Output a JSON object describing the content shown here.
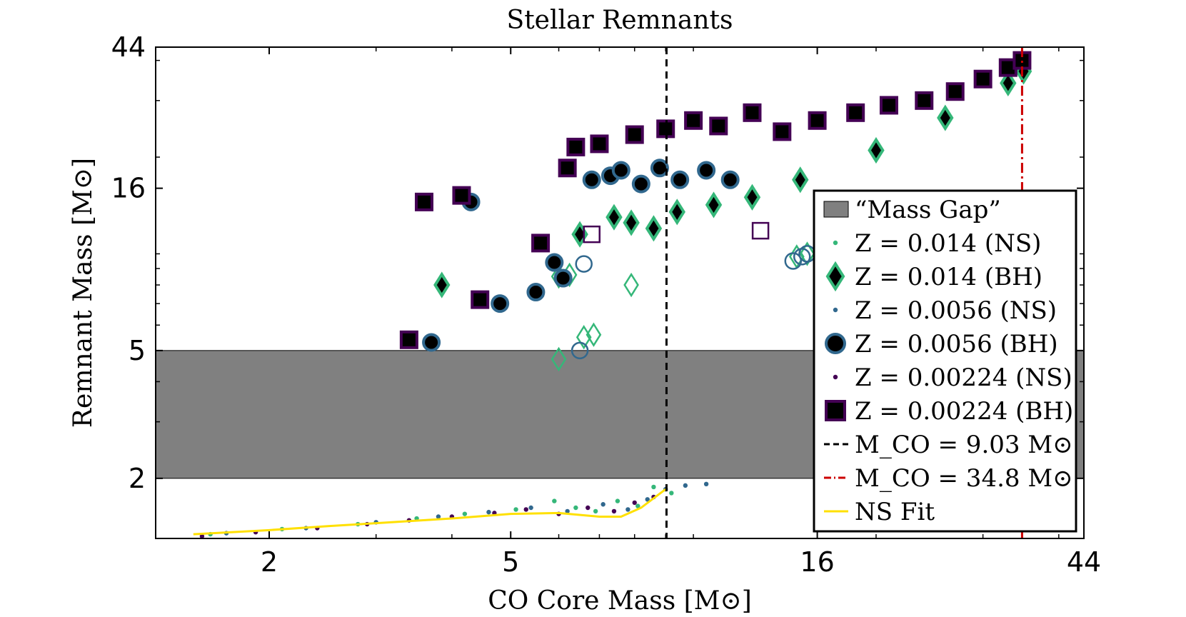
{
  "chart_data": {
    "type": "scatter",
    "title": "Stellar Remnants",
    "xlabel": "CO Core Mass [M⊙]",
    "ylabel": "Remnant Mass [M⊙]",
    "xscale": "log",
    "yscale": "log",
    "xlim": [
      1.3,
      44
    ],
    "ylim": [
      1.3,
      44
    ],
    "xticks": [
      2,
      5,
      16,
      44
    ],
    "xtick_labels": [
      "2",
      "5",
      "16",
      "44"
    ],
    "yticks": [
      2,
      5,
      16,
      44
    ],
    "ytick_labels": [
      "2",
      "5",
      "16",
      "44"
    ],
    "mass_gap": {
      "label": "“Mass Gap”",
      "ymin": 2,
      "ymax": 5,
      "color": "#808080"
    },
    "vlines": [
      {
        "x": 9.03,
        "label": "M_CO = 9.03 M⊙",
        "color": "#000000",
        "style": "dashed"
      },
      {
        "x": 34.8,
        "label": "M_CO = 34.8 M⊙",
        "color": "#cc0000",
        "style": "dashdot"
      }
    ],
    "legend": {
      "location": "lower-right",
      "entries": [
        {
          "key": "gap",
          "label": "“Mass Gap”"
        },
        {
          "key": "ns014",
          "label": "Z = 0.014 (NS)"
        },
        {
          "key": "bh014",
          "label": "Z = 0.014 (BH)"
        },
        {
          "key": "ns0056",
          "label": "Z = 0.0056 (NS)"
        },
        {
          "key": "bh0056",
          "label": "Z = 0.0056 (BH)"
        },
        {
          "key": "ns00224",
          "label": "Z = 0.00224 (NS)"
        },
        {
          "key": "bh00224",
          "label": "Z = 0.00224 (BH)"
        },
        {
          "key": "line903",
          "label": "M_CO = 9.03 M⊙"
        },
        {
          "key": "line348",
          "label": "M_CO = 34.8 M⊙"
        },
        {
          "key": "nsfit",
          "label": "NS Fit"
        }
      ]
    },
    "ns_fit": {
      "name": "NS Fit",
      "color": "#ffe000",
      "x": [
        1.5,
        2.0,
        2.5,
        3.0,
        4.0,
        5.0,
        6.0,
        7.0,
        7.6,
        8.2,
        9.0
      ],
      "y": [
        1.34,
        1.38,
        1.42,
        1.45,
        1.5,
        1.55,
        1.56,
        1.52,
        1.52,
        1.62,
        1.85
      ]
    },
    "series": [
      {
        "name": "Z = 0.014 (NS)",
        "kind": "NS",
        "marker": "dot",
        "color": "#35b779",
        "x": [
          1.6,
          2.1,
          2.8,
          3.5,
          4.2,
          5.1,
          5.9,
          6.4,
          6.9,
          7.5,
          8.1,
          8.6,
          9.2
        ],
        "y": [
          1.34,
          1.39,
          1.44,
          1.5,
          1.55,
          1.6,
          1.7,
          1.62,
          1.58,
          1.7,
          1.64,
          1.88,
          1.8
        ]
      },
      {
        "name": "Z = 0.014 (BH)",
        "kind": "BH",
        "marker": "diamond",
        "color": "#35b779",
        "filled_x": [
          3.85,
          6.5,
          7.4,
          7.9,
          8.6,
          9.4,
          10.8,
          12.5,
          15.0,
          20.0,
          26.0,
          33.0,
          35.0
        ],
        "filled_y": [
          8.0,
          11.5,
          13.0,
          12.5,
          12.0,
          13.5,
          14.2,
          15.0,
          17.0,
          21.0,
          26.5,
          34.0,
          37.0
        ],
        "open_x": [
          6.0,
          6.25,
          7.9,
          6.6,
          6.85,
          6.0,
          16.5,
          14.8,
          15.4
        ],
        "open_y": [
          8.5,
          8.6,
          8.0,
          5.5,
          5.6,
          4.7,
          10.5,
          9.8,
          10.0
        ]
      },
      {
        "name": "Z = 0.0056 (NS)",
        "kind": "NS",
        "marker": "dot",
        "color": "#31688e",
        "x": [
          1.7,
          2.3,
          3.0,
          3.8,
          4.6,
          5.4,
          6.2,
          7.1,
          7.8,
          8.4,
          9.0,
          9.7,
          10.5
        ],
        "y": [
          1.35,
          1.4,
          1.46,
          1.52,
          1.57,
          1.62,
          1.58,
          1.66,
          1.6,
          1.72,
          1.85,
          1.9,
          1.92
        ]
      },
      {
        "name": "Z = 0.0056 (BH)",
        "kind": "BH",
        "marker": "circle",
        "color": "#31688e",
        "filled_x": [
          3.7,
          4.3,
          4.8,
          5.5,
          5.9,
          6.1,
          6.8,
          7.3,
          7.6,
          8.2,
          8.8,
          9.5,
          10.5,
          11.5
        ],
        "filled_y": [
          5.3,
          14.5,
          7.0,
          7.6,
          9.4,
          8.4,
          17.0,
          17.5,
          18.2,
          16.5,
          18.5,
          17.0,
          18.2,
          17.0
        ],
        "open_x": [
          6.5,
          6.6,
          14.6,
          15.1,
          15.4
        ],
        "open_y": [
          5.0,
          9.3,
          9.5,
          9.8,
          10.0
        ]
      },
      {
        "name": "Z = 0.00224 (NS)",
        "kind": "NS",
        "marker": "dot",
        "color": "#440154",
        "x": [
          1.55,
          1.9,
          2.4,
          2.9,
          3.4,
          4.0,
          4.7,
          5.3,
          6.0,
          6.7,
          7.4,
          8.0,
          8.6
        ],
        "y": [
          1.32,
          1.36,
          1.4,
          1.44,
          1.48,
          1.52,
          1.56,
          1.6,
          1.55,
          1.62,
          1.58,
          1.68,
          1.75
        ]
      },
      {
        "name": "Z = 0.00224 (BH)",
        "kind": "BH",
        "marker": "square",
        "color": "#440154",
        "filled_x": [
          3.4,
          3.6,
          4.15,
          4.45,
          5.6,
          6.2,
          6.4,
          7.0,
          8.0,
          9.0,
          10.0,
          11.0,
          12.5,
          14.0,
          16.0,
          18.5,
          21.0,
          24.0,
          27.0,
          30.0,
          33.0,
          34.8
        ],
        "filled_y": [
          5.4,
          14.5,
          15.2,
          7.2,
          10.8,
          18.5,
          21.5,
          22.0,
          23.5,
          24.5,
          26.0,
          25.0,
          27.5,
          24.0,
          26.0,
          27.5,
          29.0,
          30.0,
          32.0,
          35.0,
          38.0,
          40.0
        ],
        "open_x": [
          6.8,
          12.9
        ],
        "open_y": [
          11.5,
          11.8
        ]
      }
    ]
  }
}
